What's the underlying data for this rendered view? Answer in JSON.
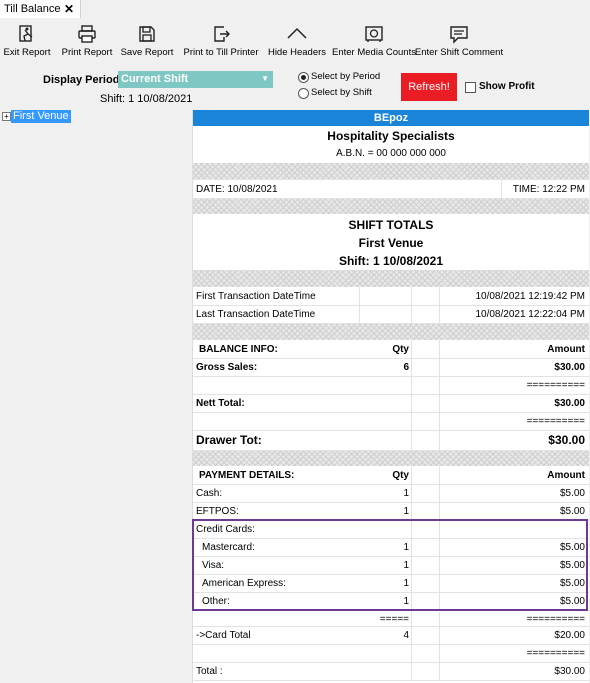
{
  "tab": {
    "title": "Till Balance",
    "close": "✕"
  },
  "toolbar": [
    {
      "name": "exit-report-button",
      "icon": "exit-icon",
      "label": "Exit Report"
    },
    {
      "name": "print-report-button",
      "icon": "printer-icon",
      "label": "Print Report"
    },
    {
      "name": "save-report-button",
      "icon": "floppy-icon",
      "label": "Save Report"
    },
    {
      "name": "print-to-till-printer-button",
      "icon": "export-icon",
      "label": "Print to Till Printer"
    },
    {
      "name": "hide-headers-button",
      "icon": "chevron-up-icon",
      "label": "Hide Headers"
    },
    {
      "name": "enter-media-counts-button",
      "icon": "safe-icon",
      "label": "Enter Media Counts"
    },
    {
      "name": "enter-shift-comment-button",
      "icon": "comment-icon",
      "label": "Enter Shift Comment"
    }
  ],
  "filters": {
    "display_period_label": "Display Period:",
    "display_period_value": "Current Shift",
    "shift_text": "Shift: 1 10/08/2021",
    "select_by_period": "Select by Period",
    "select_by_shift": "Select by Shift",
    "refresh": "Refresh!",
    "show_profit": "Show Profit"
  },
  "tree": {
    "node": "First Venue"
  },
  "report": {
    "brand": "BEpoz",
    "company": "Hospitality Specialists",
    "abn": "A.B.N. = 00 000 000 000",
    "date": "DATE: 10/08/2021",
    "time": "TIME: 12:22 PM",
    "section_title": "SHIFT TOTALS",
    "venue": "First Venue",
    "shift": "Shift: 1 10/08/2021",
    "first_tx_label": "First Transaction DateTime",
    "first_tx_value": "10/08/2021 12:19:42 PM",
    "last_tx_label": "Last Transaction DateTime",
    "last_tx_value": "10/08/2021 12:22:04 PM",
    "balance_info": "BALANCE INFO:",
    "qty": "Qty",
    "amount": "Amount",
    "gross_sales": "Gross Sales:",
    "gross_qty": "6",
    "gross_amount": "$30.00",
    "separator": "==========",
    "nett_total": "Nett Total:",
    "nett_amount": "$30.00",
    "drawer_tot": "Drawer Tot:",
    "drawer_amount": "$30.00",
    "payment_details": "PAYMENT DETAILS:",
    "cash": "Cash:",
    "cash_qty": "1",
    "cash_amount": "$5.00",
    "eftpos": "EFTPOS:",
    "eftpos_qty": "1",
    "eftpos_amount": "$5.00",
    "credit_cards": "Credit Cards:",
    "mastercard": "Mastercard:",
    "mastercard_qty": "1",
    "mastercard_amount": "$5.00",
    "visa": "Visa:",
    "visa_qty": "1",
    "visa_amount": "$5.00",
    "amex": "American Express:",
    "amex_qty": "1",
    "amex_amount": "$5.00",
    "other": "Other:",
    "other_qty": "1",
    "other_amount": "$5.00",
    "qty_separator": "=====",
    "card_total": "->Card Total",
    "card_total_qty": "4",
    "card_total_amount": "$20.00",
    "total": "Total :",
    "total_amount": "$30.00"
  },
  "colors": {
    "brand_bar": "#1a84d8",
    "refresh": "#ea1c24",
    "select": "#7ec7c3",
    "highlight": "#6a3a95"
  }
}
